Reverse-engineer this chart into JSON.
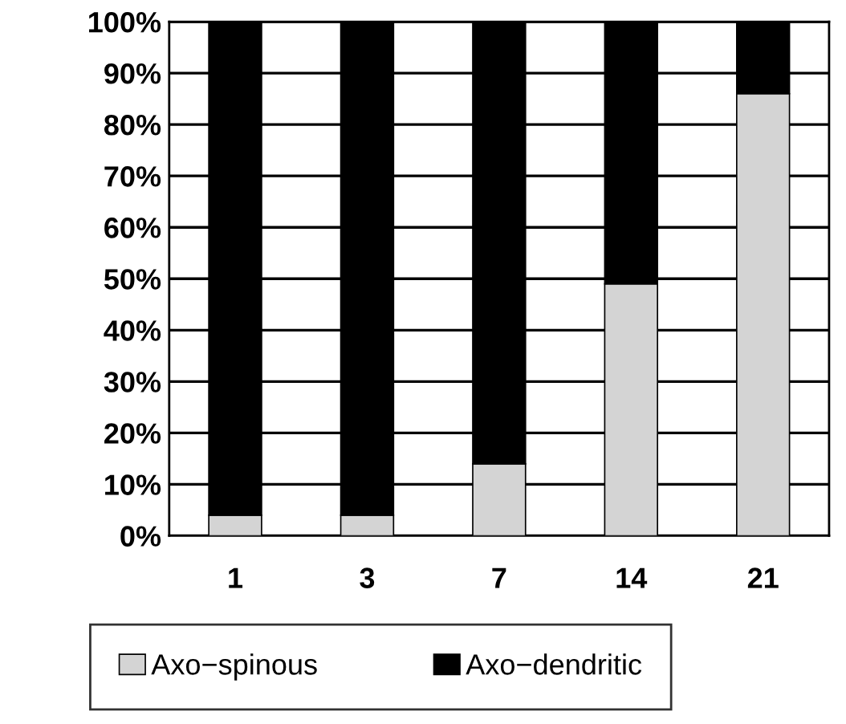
{
  "chart_data": {
    "type": "bar",
    "stacked": true,
    "categories": [
      "1",
      "3",
      "7",
      "14",
      "21"
    ],
    "series": [
      {
        "name": "Axo−spinous",
        "color": "#d4d4d4",
        "values": [
          4,
          4,
          14,
          49,
          86
        ]
      },
      {
        "name": "Axo−dendritic",
        "color": "#000000",
        "values": [
          96,
          96,
          86,
          51,
          14
        ]
      }
    ],
    "ylim": [
      0,
      100
    ],
    "yticks": [
      {
        "value": 0,
        "label": "0%"
      },
      {
        "value": 10,
        "label": "10%"
      },
      {
        "value": 20,
        "label": "20%"
      },
      {
        "value": 30,
        "label": "30%"
      },
      {
        "value": 40,
        "label": "40%"
      },
      {
        "value": 50,
        "label": "50%"
      },
      {
        "value": 60,
        "label": "60%"
      },
      {
        "value": 70,
        "label": "70%"
      },
      {
        "value": 80,
        "label": "80%"
      },
      {
        "value": 90,
        "label": "90%"
      },
      {
        "value": 100,
        "label": "100%"
      }
    ],
    "grid": "y",
    "legend": "bottom"
  }
}
